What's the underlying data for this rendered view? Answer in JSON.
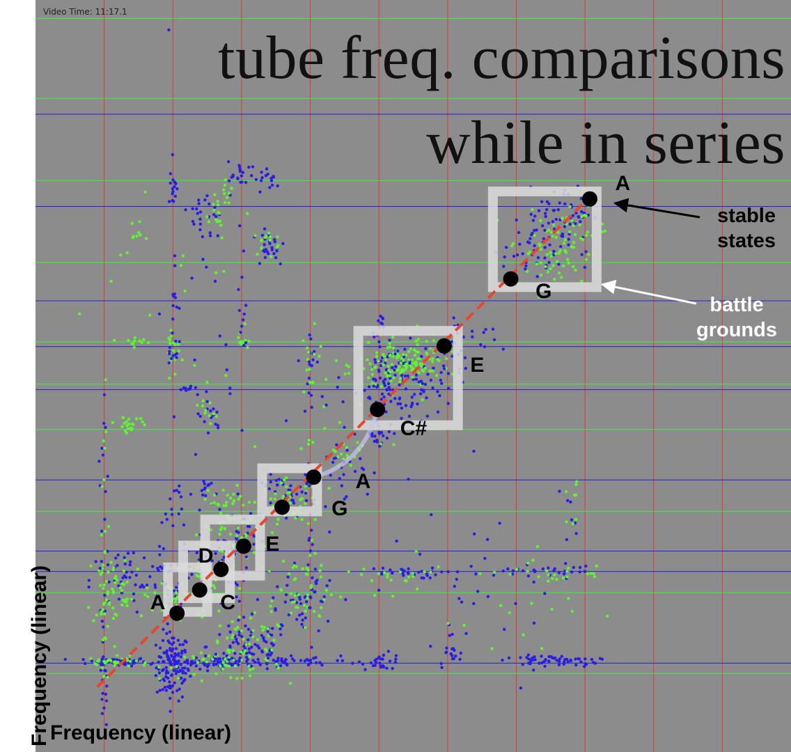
{
  "chart_data": {
    "type": "scatter",
    "title": "tube freq. comparisons while in series",
    "title_lines": [
      "tube freq. comparisons",
      "while in series"
    ],
    "video_time": "Video Time: 11:17.1",
    "xlabel": "Frequency (linear)",
    "ylabel": "Frequency (linear)",
    "xlim": [
      0,
      110
    ],
    "ylim": [
      0,
      110
    ],
    "grid": true,
    "colors": {
      "background": "#8c8c8c",
      "vertical_grid": "#e0392a",
      "horizontal_grid_blue": "#1f1fdc",
      "horizontal_grid_green": "#3df23d",
      "points_blue": "#2a1ee6",
      "points_green": "#5ef52f",
      "diagonal": "#e8452e",
      "box": "#dcdcdc",
      "markers": "#000000"
    },
    "grid_x": [
      10,
      20,
      30,
      40,
      50,
      60,
      70,
      80,
      90,
      100
    ],
    "grid_y_blue": [
      13,
      26.4,
      29.4,
      39.8,
      53,
      59.3,
      66,
      79.8,
      93.3
    ],
    "grid_y_green": [
      11.5,
      23.3,
      35.2,
      47.2,
      53.8,
      60,
      71.6,
      83.6,
      95.6,
      107.3
    ],
    "diagonal_line": [
      [
        9,
        9.5
      ],
      [
        81,
        81.5
      ]
    ],
    "boxes": [
      [
        19.3,
        20.5,
        25,
        27
      ],
      [
        21.5,
        22.5,
        28.3,
        30.2
      ],
      [
        24.7,
        25.8,
        32.7,
        34
      ],
      [
        33,
        35.2,
        41,
        41.5
      ],
      [
        47,
        47.8,
        61.5,
        61.6
      ],
      [
        66.6,
        68,
        81.7,
        82
      ]
    ],
    "stable_states": [
      {
        "note": "A",
        "x": 20.6,
        "y": 20.3
      },
      {
        "note": "C",
        "x": 23.9,
        "y": 23.7
      },
      {
        "note": "D",
        "x": 27,
        "y": 26.7
      },
      {
        "note": "E",
        "x": 30.3,
        "y": 30.1
      },
      {
        "note": "G",
        "x": 35.9,
        "y": 35.8
      },
      {
        "note": "A",
        "x": 40.5,
        "y": 40.2
      },
      {
        "note": "C#",
        "x": 49.8,
        "y": 50.1
      },
      {
        "note": "E",
        "x": 59.5,
        "y": 59.4
      },
      {
        "note": "G",
        "x": 69.2,
        "y": 69.2
      },
      {
        "note": "A",
        "x": 80.7,
        "y": 80.9
      }
    ],
    "note_labels": [
      {
        "text": "A",
        "x": 16.7,
        "y": 21.8
      },
      {
        "text": "C",
        "x": 26.9,
        "y": 21.8
      },
      {
        "text": "D",
        "x": 23.7,
        "y": 28.6
      },
      {
        "text": "E",
        "x": 33.5,
        "y": 30.4
      },
      {
        "text": "G",
        "x": 43.1,
        "y": 35.5
      },
      {
        "text": "A",
        "x": 46.6,
        "y": 39.5
      },
      {
        "text": "C#",
        "x": 53.1,
        "y": 47.3
      },
      {
        "text": "E",
        "x": 63.3,
        "y": 56.5
      },
      {
        "text": "G",
        "x": 72.8,
        "y": 67.3
      },
      {
        "text": "A",
        "x": 84.4,
        "y": 83.1
      }
    ],
    "annotations": [
      {
        "text": "stable states",
        "lines": [
          "stable",
          "states"
        ]
      },
      {
        "text": "battle grounds",
        "lines": [
          "battle",
          "grounds"
        ]
      }
    ],
    "clusters": [
      {
        "color": "blue",
        "x": 20,
        "y": 12.5,
        "sx": 1.2,
        "sy": 2.5,
        "n": 120
      },
      {
        "color": "blue",
        "x": 12,
        "y": 13.2,
        "sx": 2.2,
        "sy": 0.3,
        "n": 60
      },
      {
        "color": "green",
        "x": 12,
        "y": 13.2,
        "sx": 2.2,
        "sy": 0.4,
        "n": 30
      },
      {
        "color": "blue",
        "x": 27,
        "y": 13.2,
        "sx": 5,
        "sy": 0.5,
        "n": 80
      },
      {
        "color": "green",
        "x": 27,
        "y": 12.6,
        "sx": 4.5,
        "sy": 1,
        "n": 40
      },
      {
        "color": "blue",
        "x": 31,
        "y": 15.5,
        "sx": 3,
        "sy": 2,
        "n": 70
      },
      {
        "color": "green",
        "x": 31,
        "y": 15.5,
        "sx": 3,
        "sy": 2,
        "n": 45
      },
      {
        "color": "blue",
        "x": 40,
        "y": 13.3,
        "sx": 4,
        "sy": 0.4,
        "n": 30
      },
      {
        "color": "blue",
        "x": 50.5,
        "y": 13.3,
        "sx": 1.5,
        "sy": 0.6,
        "n": 25
      },
      {
        "color": "blue",
        "x": 60.5,
        "y": 14,
        "sx": 1,
        "sy": 0.8,
        "n": 15
      },
      {
        "color": "blue",
        "x": 74,
        "y": 13.4,
        "sx": 2.6,
        "sy": 0.35,
        "n": 40
      },
      {
        "color": "blue",
        "x": 79,
        "y": 13.4,
        "sx": 1.5,
        "sy": 0.4,
        "n": 15
      },
      {
        "color": "blue",
        "x": 13,
        "y": 25,
        "sx": 2.5,
        "sy": 2.5,
        "n": 40
      },
      {
        "color": "green",
        "x": 12,
        "y": 24,
        "sx": 2.5,
        "sy": 3,
        "n": 50
      },
      {
        "color": "blue",
        "x": 38,
        "y": 22,
        "sx": 3,
        "sy": 3,
        "n": 50
      },
      {
        "color": "green",
        "x": 38,
        "y": 24,
        "sx": 3.5,
        "sy": 3,
        "n": 45
      },
      {
        "color": "blue",
        "x": 53,
        "y": 26.2,
        "sx": 3,
        "sy": 0.4,
        "n": 30
      },
      {
        "color": "green",
        "x": 52,
        "y": 25.8,
        "sx": 2.5,
        "sy": 0.5,
        "n": 15
      },
      {
        "color": "blue",
        "x": 72,
        "y": 26.5,
        "sx": 2,
        "sy": 0.5,
        "n": 15
      },
      {
        "color": "green",
        "x": 73,
        "y": 25.8,
        "sx": 2,
        "sy": 0.5,
        "n": 10
      },
      {
        "color": "blue",
        "x": 78,
        "y": 26.5,
        "sx": 1.5,
        "sy": 0.5,
        "n": 12
      },
      {
        "color": "green",
        "x": 80,
        "y": 26.2,
        "sx": 1.2,
        "sy": 0.5,
        "n": 8
      },
      {
        "color": "blue",
        "x": 20,
        "y": 24,
        "sx": 2,
        "sy": 3,
        "n": 40
      },
      {
        "color": "green",
        "x": 21,
        "y": 22.5,
        "sx": 2.5,
        "sy": 2,
        "n": 35
      },
      {
        "color": "blue",
        "x": 26,
        "y": 27,
        "sx": 2,
        "sy": 2,
        "n": 30
      },
      {
        "color": "green",
        "x": 25,
        "y": 26,
        "sx": 2.2,
        "sy": 2,
        "n": 30
      },
      {
        "color": "blue",
        "x": 30,
        "y": 31,
        "sx": 2,
        "sy": 2,
        "n": 35
      },
      {
        "color": "green",
        "x": 29,
        "y": 33,
        "sx": 2.5,
        "sy": 2.5,
        "n": 45
      },
      {
        "color": "blue",
        "x": 37,
        "y": 37.5,
        "sx": 2,
        "sy": 1.5,
        "n": 40
      },
      {
        "color": "green",
        "x": 37,
        "y": 36.5,
        "sx": 2,
        "sy": 1.5,
        "n": 40
      },
      {
        "color": "blue",
        "x": 25,
        "y": 38,
        "sx": 1,
        "sy": 1.2,
        "n": 15
      },
      {
        "color": "green",
        "x": 27,
        "y": 37,
        "sx": 1.5,
        "sy": 1.5,
        "n": 15
      },
      {
        "color": "blue",
        "x": 20,
        "y": 36,
        "sx": 0.8,
        "sy": 2,
        "n": 15
      },
      {
        "color": "blue",
        "x": 51.5,
        "y": 54,
        "sx": 2,
        "sy": 3,
        "n": 80
      },
      {
        "color": "green",
        "x": 53,
        "y": 56.5,
        "sx": 3,
        "sy": 2,
        "n": 90
      },
      {
        "color": "blue",
        "x": 56,
        "y": 54,
        "sx": 3,
        "sy": 2.5,
        "n": 50
      },
      {
        "color": "green",
        "x": 56,
        "y": 58,
        "sx": 2.5,
        "sy": 1.5,
        "n": 40
      },
      {
        "color": "blue",
        "x": 50,
        "y": 46.5,
        "sx": 0.8,
        "sy": 1.2,
        "n": 20
      },
      {
        "color": "blue",
        "x": 45,
        "y": 42,
        "sx": 2,
        "sy": 2,
        "n": 20
      },
      {
        "color": "green",
        "x": 44,
        "y": 42,
        "sx": 1.5,
        "sy": 2,
        "n": 15
      },
      {
        "color": "blue",
        "x": 73,
        "y": 74,
        "sx": 2.5,
        "sy": 3,
        "n": 60
      },
      {
        "color": "green",
        "x": 75,
        "y": 73,
        "sx": 3,
        "sy": 3,
        "n": 55
      },
      {
        "color": "blue",
        "x": 77,
        "y": 79,
        "sx": 2,
        "sy": 2,
        "n": 40
      },
      {
        "color": "green",
        "x": 79,
        "y": 77,
        "sx": 2,
        "sy": 2.5,
        "n": 25
      },
      {
        "color": "blue",
        "x": 25,
        "y": 78,
        "sx": 1.2,
        "sy": 2.5,
        "n": 25
      },
      {
        "color": "green",
        "x": 26,
        "y": 79,
        "sx": 1,
        "sy": 2,
        "n": 15
      },
      {
        "color": "blue",
        "x": 34,
        "y": 74,
        "sx": 1.2,
        "sy": 1.5,
        "n": 25
      },
      {
        "color": "green",
        "x": 34,
        "y": 75,
        "sx": 1,
        "sy": 1,
        "n": 15
      },
      {
        "color": "blue",
        "x": 30,
        "y": 84,
        "sx": 1,
        "sy": 1.2,
        "n": 20
      },
      {
        "color": "green",
        "x": 28,
        "y": 82,
        "sx": 1,
        "sy": 1.5,
        "n": 10
      },
      {
        "color": "blue",
        "x": 34,
        "y": 83.5,
        "sx": 0.7,
        "sy": 1,
        "n": 15
      },
      {
        "color": "blue",
        "x": 20,
        "y": 83,
        "sx": 0.4,
        "sy": 1.5,
        "n": 12
      },
      {
        "color": "green",
        "x": 15,
        "y": 75,
        "sx": 1.5,
        "sy": 1.5,
        "n": 10
      },
      {
        "color": "green",
        "x": 15,
        "y": 60,
        "sx": 1,
        "sy": 0.5,
        "n": 10
      },
      {
        "color": "green",
        "x": 20,
        "y": 59,
        "sx": 0.5,
        "sy": 2,
        "n": 20
      },
      {
        "color": "blue",
        "x": 20,
        "y": 58.5,
        "sx": 0.4,
        "sy": 1.5,
        "n": 10
      },
      {
        "color": "green",
        "x": 30,
        "y": 60,
        "sx": 0.5,
        "sy": 0.5,
        "n": 12
      },
      {
        "color": "green",
        "x": 14,
        "y": 48,
        "sx": 1.2,
        "sy": 0.5,
        "n": 20
      },
      {
        "color": "blue",
        "x": 25,
        "y": 49,
        "sx": 1,
        "sy": 1.5,
        "n": 15
      },
      {
        "color": "green",
        "x": 25,
        "y": 50,
        "sx": 1,
        "sy": 1.5,
        "n": 10
      },
      {
        "color": "blue",
        "x": 22,
        "y": 53.2,
        "sx": 1,
        "sy": 0.2,
        "n": 10
      },
      {
        "color": "blue",
        "x": 40,
        "y": 57,
        "sx": 0.5,
        "sy": 3,
        "n": 15
      },
      {
        "color": "green",
        "x": 40,
        "y": 58,
        "sx": 0.5,
        "sy": 3,
        "n": 12
      },
      {
        "color": "blue",
        "x": 50,
        "y": 62,
        "sx": 0.3,
        "sy": 2,
        "n": 10
      },
      {
        "color": "blue",
        "x": 61,
        "y": 61,
        "sx": 1.5,
        "sy": 1.5,
        "n": 15
      },
      {
        "color": "blue",
        "x": 66,
        "y": 60,
        "sx": 1,
        "sy": 1,
        "n": 8
      },
      {
        "color": "blue",
        "x": 10,
        "y": 13,
        "sx": 0.3,
        "sy": 6,
        "n": 25
      },
      {
        "color": "green",
        "x": 10,
        "y": 20,
        "sx": 0.4,
        "sy": 6,
        "n": 20
      },
      {
        "color": "blue",
        "x": 10,
        "y": 40,
        "sx": 0.3,
        "sy": 8,
        "n": 12
      },
      {
        "color": "green",
        "x": 10,
        "y": 38,
        "sx": 0.4,
        "sy": 8,
        "n": 10
      },
      {
        "color": "blue",
        "x": 40,
        "y": 30,
        "sx": 0.4,
        "sy": 8,
        "n": 20
      },
      {
        "color": "green",
        "x": 40,
        "y": 32,
        "sx": 0.4,
        "sy": 8,
        "n": 15
      },
      {
        "color": "blue",
        "x": 30,
        "y": 65,
        "sx": 0.3,
        "sy": 8,
        "n": 12
      },
      {
        "color": "blue",
        "x": 20,
        "y": 70,
        "sx": 0.3,
        "sy": 10,
        "n": 15
      },
      {
        "color": "blue",
        "x": 70,
        "y": 22,
        "sx": 4,
        "sy": 5,
        "n": 15
      },
      {
        "color": "green",
        "x": 72,
        "y": 22,
        "sx": 4,
        "sy": 5,
        "n": 15
      },
      {
        "color": "blue",
        "x": 60,
        "y": 23,
        "sx": 5,
        "sy": 6,
        "n": 15
      },
      {
        "color": "green",
        "x": 58,
        "y": 24,
        "sx": 5,
        "sy": 5,
        "n": 10
      },
      {
        "color": "blue",
        "x": 44,
        "y": 50,
        "sx": 6,
        "sy": 6,
        "n": 25
      },
      {
        "color": "green",
        "x": 44,
        "y": 50,
        "sx": 6,
        "sy": 6,
        "n": 20
      },
      {
        "color": "blue",
        "x": 25,
        "y": 62,
        "sx": 5,
        "sy": 8,
        "n": 15
      },
      {
        "color": "green",
        "x": 20,
        "y": 65,
        "sx": 6,
        "sy": 8,
        "n": 15
      },
      {
        "color": "blue",
        "x": 78,
        "y": 34,
        "sx": 1,
        "sy": 3,
        "n": 8
      },
      {
        "color": "green",
        "x": 78,
        "y": 36,
        "sx": 1,
        "sy": 3,
        "n": 8
      }
    ]
  }
}
